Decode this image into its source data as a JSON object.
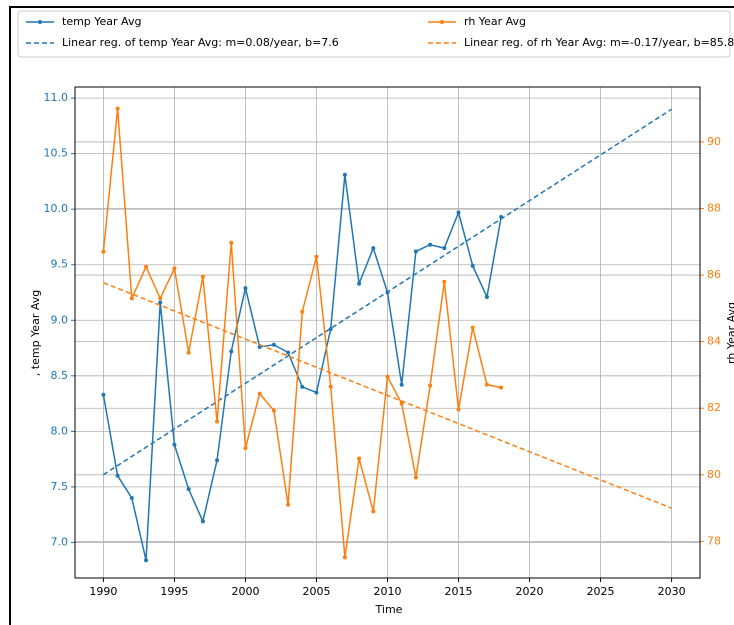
{
  "chart_data": {
    "type": "line",
    "xlabel": "Time",
    "ylabel": ", temp Year Avg",
    "y2label": "rh Year Avg",
    "xlim": [
      1988,
      2032
    ],
    "xticks": [
      1990,
      1995,
      2000,
      2005,
      2010,
      2015,
      2020,
      2025,
      2030
    ],
    "ylim": [
      6.68,
      11.1
    ],
    "yticks": [
      {
        "value": 7.0,
        "label": "7.0"
      },
      {
        "value": 7.5,
        "label": "7.5"
      },
      {
        "value": 8.0,
        "label": "8.0"
      },
      {
        "value": 8.5,
        "label": "8.5"
      },
      {
        "value": 9.0,
        "label": "9.0"
      },
      {
        "value": 9.5,
        "label": "9.5"
      },
      {
        "value": 10.0,
        "label": "10.0"
      },
      {
        "value": 10.5,
        "label": "10.5"
      },
      {
        "value": 11.0,
        "label": "11.0"
      }
    ],
    "y2lim": [
      76.9,
      91.65
    ],
    "y2ticks": [
      78,
      80,
      82,
      84,
      86,
      88,
      90
    ],
    "grid": true,
    "legend": "top",
    "series": [
      {
        "name": "temp Year Avg",
        "color": "#1f77b4",
        "axis": "y",
        "style": "solid",
        "marker": true,
        "x": [
          1990,
          1991,
          1992,
          1993,
          1994,
          1995,
          1996,
          1997,
          1998,
          1999,
          2000,
          2001,
          2002,
          2003,
          2004,
          2005,
          2006,
          2007,
          2008,
          2009,
          2010,
          2011,
          2012,
          2013,
          2014,
          2015,
          2016,
          2017,
          2018
        ],
        "values": [
          8.33,
          7.6,
          7.4,
          6.84,
          9.16,
          7.88,
          7.48,
          7.19,
          7.74,
          8.72,
          9.29,
          8.76,
          8.78,
          8.71,
          8.4,
          8.35,
          8.92,
          10.31,
          9.33,
          9.65,
          9.25,
          8.42,
          9.62,
          9.68,
          9.65,
          9.97,
          9.49,
          9.21,
          9.93
        ]
      },
      {
        "name": "Linear reg. of temp Year Avg: m=0.08/year, b=7.6",
        "color": "#1f77b4",
        "axis": "y",
        "style": "dashed",
        "marker": false,
        "x": [
          1990,
          2030
        ],
        "values": [
          7.61,
          10.9
        ]
      },
      {
        "name": "rh Year Avg",
        "color": "#ff7f0e",
        "axis": "y2",
        "style": "solid",
        "marker": true,
        "x": [
          1990,
          1991,
          1992,
          1993,
          1994,
          1995,
          1996,
          1997,
          1998,
          1999,
          2000,
          2001,
          2002,
          2003,
          2004,
          2005,
          2006,
          2007,
          2008,
          2009,
          2010,
          2011,
          2012,
          2013,
          2014,
          2015,
          2016,
          2017,
          2018
        ],
        "values": [
          86.7,
          91.0,
          85.3,
          86.25,
          85.3,
          86.2,
          83.67,
          85.95,
          81.6,
          86.97,
          80.8,
          82.44,
          81.93,
          79.1,
          84.9,
          86.55,
          82.65,
          77.52,
          80.49,
          78.9,
          82.95,
          82.14,
          79.92,
          82.68,
          85.8,
          81.96,
          84.42,
          82.71,
          82.62
        ]
      },
      {
        "name": "Linear reg. of rh Year Avg: m=-0.17/year, b=85.8",
        "color": "#ff7f0e",
        "axis": "y2",
        "style": "dashed",
        "marker": false,
        "x": [
          1990,
          2030
        ],
        "values": [
          85.77,
          79.0
        ]
      }
    ]
  }
}
